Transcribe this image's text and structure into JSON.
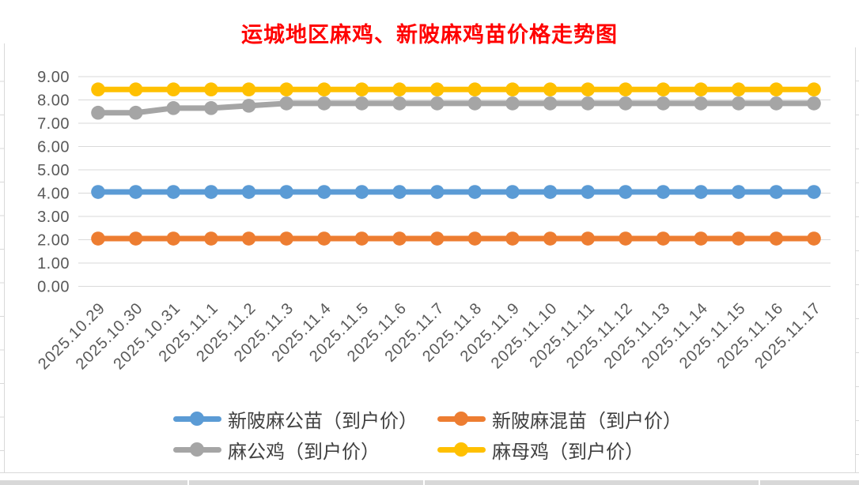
{
  "chart_data": {
    "type": "line",
    "title": "运城地区麻鸡、新陂麻鸡苗价格走势图",
    "title_color": "#FF0000",
    "categories": [
      "2025.10.29",
      "2025.10.30",
      "2025.10.31",
      "2025.11.1",
      "2025.11.2",
      "2025.11.3",
      "2025.11.4",
      "2025.11.5",
      "2025.11.6",
      "2025.11.7",
      "2025.11.8",
      "2025.11.9",
      "2025.11.10",
      "2025.11.11",
      "2025.11.12",
      "2025.11.13",
      "2025.11.14",
      "2025.11.15",
      "2025.11.16",
      "2025.11.17"
    ],
    "series": [
      {
        "name": "新陂麻公苗（到户价）",
        "color": "#5B9BD5",
        "values": [
          4.05,
          4.05,
          4.05,
          4.05,
          4.05,
          4.05,
          4.05,
          4.05,
          4.05,
          4.05,
          4.05,
          4.05,
          4.05,
          4.05,
          4.05,
          4.05,
          4.05,
          4.05,
          4.05,
          4.05
        ]
      },
      {
        "name": "新陂麻混苗（到户价）",
        "color": "#ED7D31",
        "values": [
          2.05,
          2.05,
          2.05,
          2.05,
          2.05,
          2.05,
          2.05,
          2.05,
          2.05,
          2.05,
          2.05,
          2.05,
          2.05,
          2.05,
          2.05,
          2.05,
          2.05,
          2.05,
          2.05,
          2.05
        ]
      },
      {
        "name": "麻公鸡（到户价）",
        "color": "#A5A5A5",
        "values": [
          7.45,
          7.45,
          7.65,
          7.65,
          7.75,
          7.85,
          7.85,
          7.85,
          7.85,
          7.85,
          7.85,
          7.85,
          7.85,
          7.85,
          7.85,
          7.85,
          7.85,
          7.85,
          7.85,
          7.85
        ]
      },
      {
        "name": "麻母鸡（到户价）",
        "color": "#FFC000",
        "values": [
          8.45,
          8.45,
          8.45,
          8.45,
          8.45,
          8.45,
          8.45,
          8.45,
          8.45,
          8.45,
          8.45,
          8.45,
          8.45,
          8.45,
          8.45,
          8.45,
          8.45,
          8.45,
          8.45,
          8.45
        ]
      }
    ],
    "ylim": [
      0,
      9
    ],
    "y_ticks": [
      "9.00",
      "8.00",
      "7.00",
      "6.00",
      "5.00",
      "4.00",
      "3.00",
      "2.00",
      "1.00",
      "0.00"
    ],
    "xlabel": "",
    "ylabel": "",
    "grid": true,
    "legend_position": "bottom",
    "axis_label_color": "#595959",
    "gridline_color": "#D9D9D9"
  }
}
